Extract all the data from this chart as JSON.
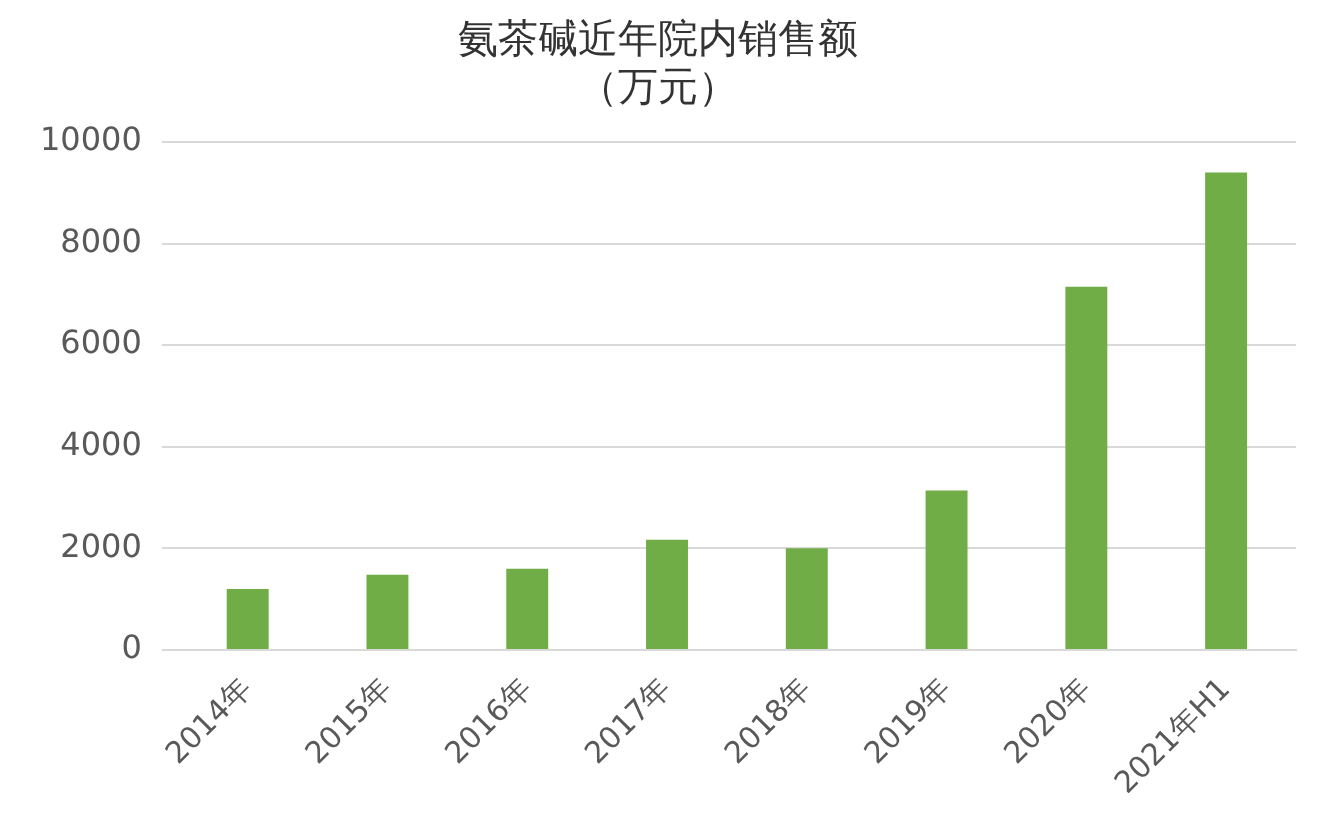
{
  "chart_data": {
    "type": "bar",
    "title": "氨茶碱近年院内销售额（万元）",
    "categories": [
      "2014年",
      "2015年",
      "2016年",
      "2017年",
      "2018年",
      "2019年",
      "2020年",
      "2021年H1"
    ],
    "values": [
      1200,
      1480,
      1600,
      2170,
      2000,
      3140,
      7150,
      9400
    ],
    "color": "#70ad47",
    "ylim": [
      0,
      10000
    ],
    "yticks": [
      0,
      2000,
      4000,
      6000,
      8000,
      10000
    ],
    "grid": "y"
  }
}
